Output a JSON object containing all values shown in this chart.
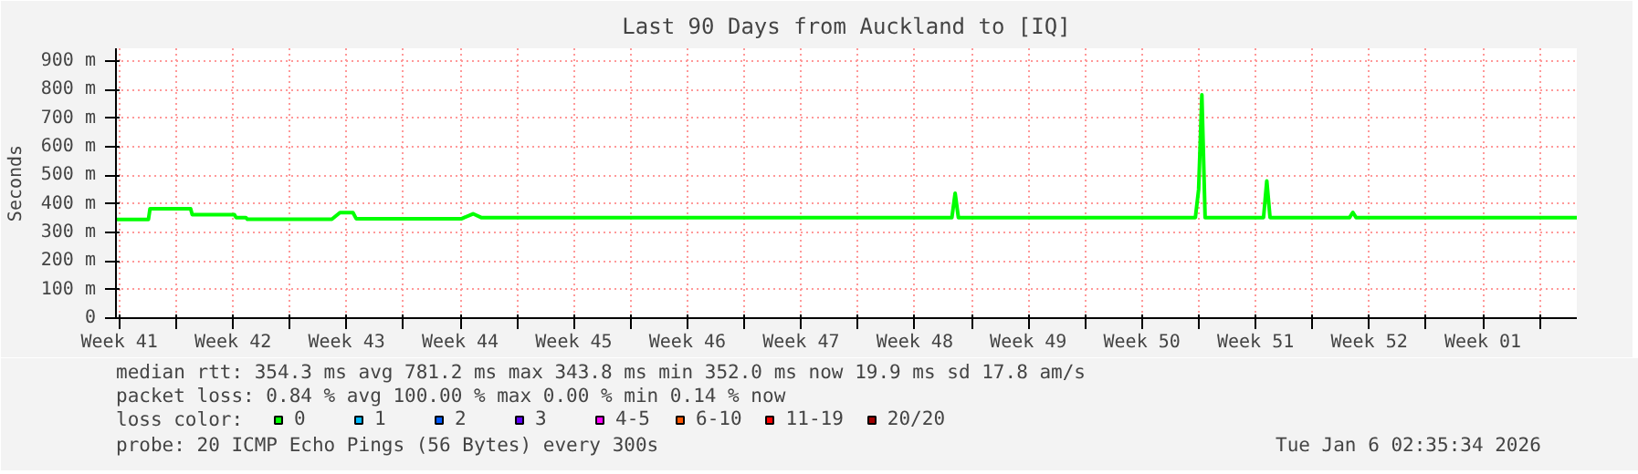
{
  "chart_data": {
    "type": "line",
    "title": "Last 90 Days from Auckland to [IQ]",
    "ylabel": "Seconds",
    "xlim": [
      "2025-10-09T07:00",
      "2026-01-07T07:00"
    ],
    "ylim": [
      0,
      944
    ],
    "xticks": [
      {
        "value": "2025-10-09T12:00",
        "label": "Week 41"
      },
      {
        "value": "2025-10-13",
        "label": null
      },
      {
        "value": "2025-10-16T12:00",
        "label": "Week 42"
      },
      {
        "value": "2025-10-20",
        "label": null
      },
      {
        "value": "2025-10-23T12:00",
        "label": "Week 43"
      },
      {
        "value": "2025-10-27",
        "label": null
      },
      {
        "value": "2025-10-30T12:00",
        "label": "Week 44"
      },
      {
        "value": "2025-11-03",
        "label": null
      },
      {
        "value": "2025-11-06T12:00",
        "label": "Week 45"
      },
      {
        "value": "2025-11-10",
        "label": null
      },
      {
        "value": "2025-11-13T12:00",
        "label": "Week 46"
      },
      {
        "value": "2025-11-17",
        "label": null
      },
      {
        "value": "2025-11-20T12:00",
        "label": "Week 47"
      },
      {
        "value": "2025-11-24",
        "label": null
      },
      {
        "value": "2025-11-27T12:00",
        "label": "Week 48"
      },
      {
        "value": "2025-12-01",
        "label": null
      },
      {
        "value": "2025-12-04T12:00",
        "label": "Week 49"
      },
      {
        "value": "2025-12-08",
        "label": null
      },
      {
        "value": "2025-12-11T12:00",
        "label": "Week 50"
      },
      {
        "value": "2025-12-15",
        "label": null
      },
      {
        "value": "2025-12-18T12:00",
        "label": "Week 51"
      },
      {
        "value": "2025-12-22",
        "label": null
      },
      {
        "value": "2025-12-25T12:00",
        "label": "Week 52"
      },
      {
        "value": "2025-12-29",
        "label": null
      },
      {
        "value": "2026-01-01T12:00",
        "label": "Week 01"
      },
      {
        "value": "2026-01-05",
        "label": null
      }
    ],
    "yticks": [
      0,
      {
        "value": 100,
        "label": "100 m"
      },
      {
        "value": 200,
        "label": "200 m"
      },
      {
        "value": 300,
        "label": "300 m"
      },
      {
        "value": 400,
        "label": "400 m"
      },
      {
        "value": 500,
        "label": "500 m"
      },
      {
        "value": 600,
        "label": "600 m"
      },
      {
        "value": 700,
        "label": "700 m"
      },
      {
        "value": 800,
        "label": "800 m"
      },
      {
        "value": 900,
        "label": "900 m"
      }
    ],
    "grid": true,
    "legend": "bottom",
    "legend_title": "loss color:",
    "series": [
      {
        "name": "0",
        "color": "#00ff00",
        "x": [
          "2025-10-09T07:00",
          "2025-10-11T07:00",
          "2025-10-11T09:24",
          "2025-10-13T21:24",
          "2025-10-13T23:48",
          "2025-10-16T14:12",
          "2025-10-16T16:36",
          "2025-10-17T07:00",
          "2025-10-17T09:24",
          "2025-10-22T14:12",
          "2025-10-23T02:12",
          "2025-10-23T21:24",
          "2025-10-24T02:12",
          "2025-10-30T14:12",
          "2025-10-31T07:00",
          "2025-10-31T19:00",
          "2025-11-29T19:00",
          "2025-11-29T23:48",
          "2025-11-30T04:36",
          "2025-12-14T19:00",
          "2025-12-14T23:48",
          "2025-12-15T04:36",
          "2025-12-15T09:24",
          "2025-12-18T23:48",
          "2025-12-19T04:36",
          "2025-12-19T09:24",
          "2025-12-24T07:00",
          "2025-12-24T11:48",
          "2025-12-24T16:36",
          "2026-01-07T07:00"
        ],
        "values": [
          345,
          345,
          383,
          383,
          362,
          362,
          352,
          352,
          346,
          346,
          369,
          369,
          348,
          348,
          365,
          352,
          352,
          437,
          352,
          352,
          450,
          781,
          352,
          352,
          480,
          352,
          352,
          370,
          352,
          352
        ]
      },
      {
        "name": "1",
        "color": "#00b8ff"
      },
      {
        "name": "2",
        "color": "#0059ff"
      },
      {
        "name": "3",
        "color": "#5e00ff"
      },
      {
        "name": "4-5",
        "color": "#ff00fe"
      },
      {
        "name": "6-10",
        "color": "#ff5500"
      },
      {
        "name": "11-19",
        "color": "#ff0000"
      },
      {
        "name": "20/20",
        "color": "#a10000"
      }
    ],
    "annotations": [
      "median rtt:  354.3 ms avg  781.2 ms max  343.8 ms min  352.0 ms now  19.9 ms sd  17.8   am/s",
      "packet loss: 0.84 % avg  100.00 % max  0.00 % min  0.14 % now",
      "probe:       20 ICMP Echo Pings (56 Bytes) every 300s",
      "Tue Jan  6 02:35:34 2026"
    ]
  }
}
